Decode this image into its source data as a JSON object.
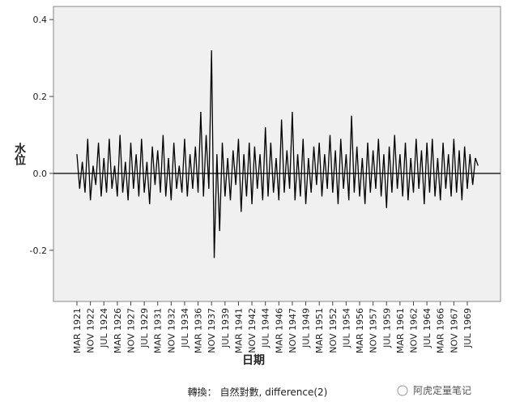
{
  "chart_data": {
    "type": "line",
    "y_label": "水位",
    "x_label": "日期",
    "note": "轉換： 自然對數, difference(2)",
    "watermark": "阿虎定量笔记",
    "categories": [
      "MAR 1921",
      null,
      null,
      null,
      null,
      "NOV 1922",
      null,
      null,
      null,
      null,
      "JUL 1924",
      null,
      null,
      null,
      null,
      "MAR 1926",
      null,
      null,
      null,
      null,
      "NOV 1927",
      null,
      null,
      null,
      null,
      "JUL 1929",
      null,
      null,
      null,
      null,
      "MAR 1931",
      null,
      null,
      null,
      null,
      "NOV 1932",
      null,
      null,
      null,
      null,
      "JUL 1934",
      null,
      null,
      null,
      null,
      "MAR 1936",
      null,
      null,
      null,
      null,
      "NOV 1937",
      null,
      null,
      null,
      null,
      "JUL 1939",
      null,
      null,
      null,
      null,
      "MAR 1941",
      null,
      null,
      null,
      null,
      "NOV 1942",
      null,
      null,
      null,
      null,
      "JUL 1944",
      null,
      null,
      null,
      null,
      "MAR 1946",
      null,
      null,
      null,
      null,
      "NOV 1947",
      null,
      null,
      null,
      null,
      "JUL 1949",
      null,
      null,
      null,
      null,
      "MAR 1951",
      null,
      null,
      null,
      null,
      "NOV 1952",
      null,
      null,
      null,
      null,
      "JUL 1954",
      null,
      null,
      null,
      null,
      "MAR 1956",
      null,
      null,
      null,
      null,
      "NOV 1957",
      null,
      null,
      null,
      null,
      "JUL 1959",
      null,
      null,
      null,
      null,
      "MAR 1961",
      null,
      null,
      null,
      null,
      "NOV 1962",
      null,
      null,
      null,
      null,
      "JUL 1964",
      null,
      null,
      null,
      null,
      "MAR 1966",
      null,
      null,
      null,
      null,
      "NOV 1967",
      null,
      null,
      null,
      null,
      "JUL 1969",
      null,
      null,
      null,
      null
    ],
    "values": [
      0.05,
      -0.04,
      0.03,
      -0.05,
      0.09,
      -0.07,
      0.02,
      -0.03,
      0.08,
      -0.06,
      0.04,
      -0.05,
      0.09,
      -0.04,
      0.02,
      -0.06,
      0.1,
      -0.05,
      0.03,
      -0.07,
      0.08,
      -0.04,
      0.05,
      -0.06,
      0.09,
      -0.05,
      0.03,
      -0.08,
      0.07,
      -0.03,
      0.06,
      -0.05,
      0.1,
      -0.06,
      0.04,
      -0.07,
      0.08,
      -0.04,
      0.02,
      -0.05,
      0.09,
      -0.06,
      0.05,
      -0.04,
      0.07,
      -0.05,
      0.16,
      -0.06,
      0.1,
      -0.04,
      0.32,
      -0.22,
      0.05,
      -0.15,
      0.08,
      -0.06,
      0.04,
      -0.07,
      0.06,
      -0.03,
      0.09,
      -0.1,
      0.05,
      -0.06,
      0.08,
      -0.08,
      0.07,
      -0.04,
      0.05,
      -0.07,
      0.12,
      -0.06,
      0.08,
      -0.05,
      0.04,
      -0.07,
      0.14,
      -0.05,
      0.06,
      -0.04,
      0.16,
      -0.07,
      0.05,
      -0.06,
      0.09,
      -0.08,
      0.04,
      -0.05,
      0.07,
      -0.03,
      0.08,
      -0.06,
      0.05,
      -0.04,
      0.1,
      -0.05,
      0.06,
      -0.08,
      0.09,
      -0.04,
      0.05,
      -0.07,
      0.15,
      -0.05,
      0.07,
      -0.06,
      0.04,
      -0.08,
      0.08,
      -0.05,
      0.06,
      -0.04,
      0.09,
      -0.06,
      0.05,
      -0.09,
      0.07,
      -0.05,
      0.1,
      -0.04,
      0.05,
      -0.06,
      0.08,
      -0.07,
      0.04,
      -0.05,
      0.09,
      -0.04,
      0.06,
      -0.08,
      0.08,
      -0.05,
      0.09,
      -0.06,
      0.04,
      -0.07,
      0.08,
      -0.04,
      0.05,
      -0.06,
      0.09,
      -0.05,
      0.06,
      -0.07,
      0.07,
      -0.04,
      0.05,
      -0.03,
      0.04,
      0.02
    ],
    "color": "#000000",
    "background": "#f0f0f0",
    "reference_line": 0,
    "ylim": [
      -0.333,
      0.434
    ],
    "yticks": [
      -0.2,
      {
        "value": 0,
        "label": "0.0"
      },
      0.2,
      0.4
    ]
  }
}
